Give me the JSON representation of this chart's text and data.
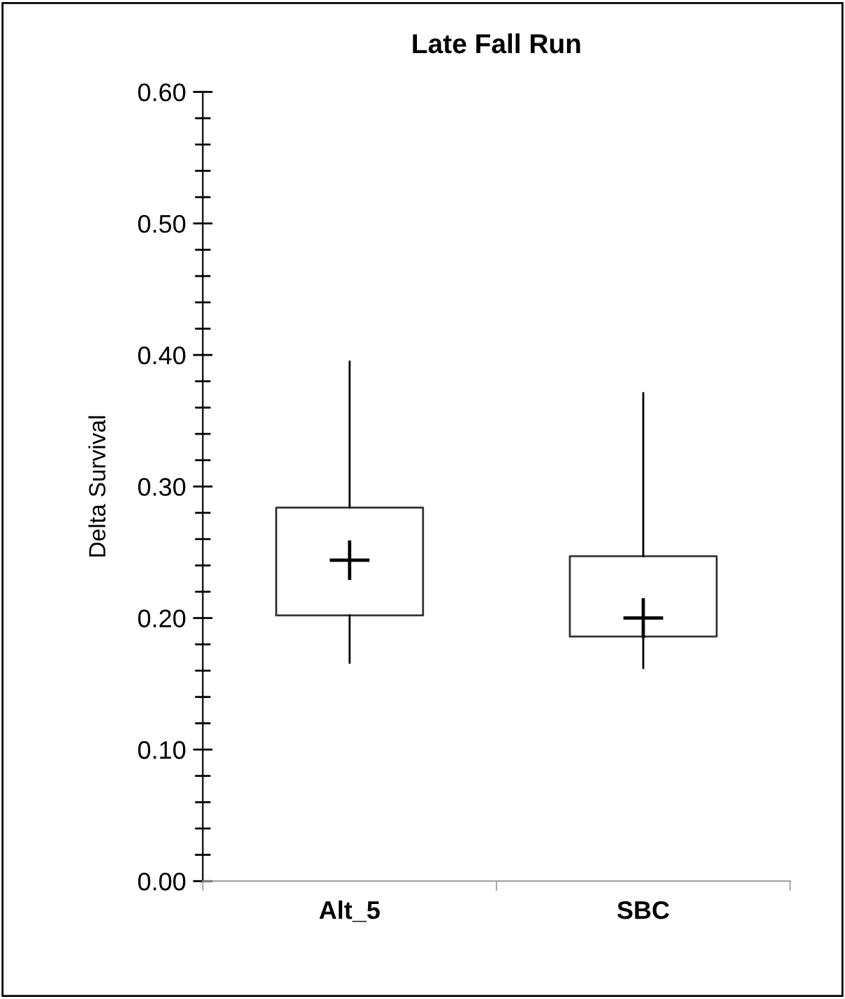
{
  "chart_data": {
    "type": "box",
    "title": "Late Fall Run",
    "ylabel": "Delta Survival",
    "categories": [
      "Alt_5",
      "SBC"
    ],
    "boxes": [
      {
        "low": 0.166,
        "q1": 0.202,
        "median": 0.244,
        "q3": 0.284,
        "high": 0.395
      },
      {
        "low": 0.162,
        "q1": 0.186,
        "median": 0.2,
        "q3": 0.247,
        "high": 0.371
      }
    ],
    "ylim": [
      0,
      0.6
    ],
    "yticks": [
      {
        "value": 0,
        "label": "0.00"
      },
      {
        "value": 0.1,
        "label": "0.10"
      },
      {
        "value": 0.2,
        "label": "0.20"
      },
      {
        "value": 0.3,
        "label": "0.30"
      },
      {
        "value": 0.4,
        "label": "0.40"
      },
      {
        "value": 0.5,
        "label": "0.50"
      },
      {
        "value": 0.6,
        "label": "0.60"
      }
    ],
    "grid": false,
    "legend": false,
    "marker": "cross"
  }
}
